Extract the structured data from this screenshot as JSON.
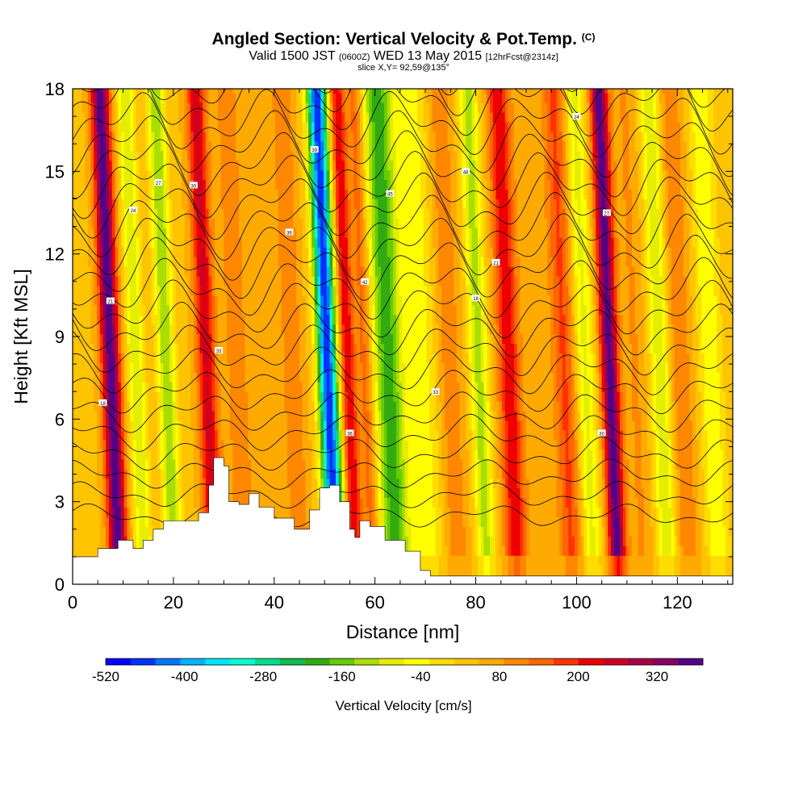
{
  "header": {
    "title_main": "Angled Section: Vertical Velocity & Pot.Temp.",
    "title_tag": "(C)",
    "valid_prefix": "Valid 1500 JST",
    "valid_utc": "(0600Z)",
    "valid_date": "WED 13 May 2015",
    "forecast": "[12hrFcst@2314z]",
    "slice": "slice X,Y= 92,59@135°"
  },
  "chart_data": {
    "type": "heatmap",
    "xlabel": "Distance [nm]",
    "ylabel": "Height [Kft MSL]",
    "xlim": [
      0,
      131
    ],
    "ylim": [
      0,
      18
    ],
    "x_ticks": [
      0,
      20,
      40,
      60,
      80,
      100,
      120
    ],
    "y_ticks": [
      0,
      3,
      6,
      9,
      12,
      15,
      18
    ],
    "colorbar": {
      "label": "Vertical Velocity [cm/s]",
      "tick_labels": [
        "-520",
        "-400",
        "-280",
        "-160",
        "-40",
        "80",
        "200",
        "320"
      ],
      "tick_values": [
        -520,
        -400,
        -280,
        -160,
        -40,
        80,
        200,
        320
      ],
      "min": -520,
      "max": 390,
      "colors": [
        "#0000ff",
        "#0033ff",
        "#0077ff",
        "#00b3ff",
        "#00e5ff",
        "#00ffcc",
        "#00dd88",
        "#11bb55",
        "#33aa11",
        "#66cc00",
        "#aadd00",
        "#e5ee00",
        "#ffff00",
        "#ffdd00",
        "#ffc400",
        "#ffaa00",
        "#ff8800",
        "#ff6600",
        "#ff3300",
        "#ee0000",
        "#cc0022",
        "#aa0044",
        "#880066",
        "#550088"
      ]
    },
    "velocity_bands": [
      {
        "x": 0,
        "w": 20,
        "v": 40
      },
      {
        "x": 8,
        "w": 1.8,
        "v": 390
      },
      {
        "x": 13,
        "w": 1.6,
        "v": -100
      },
      {
        "x": 17,
        "w": 1.4,
        "v": 40
      },
      {
        "x": 19,
        "w": 1.7,
        "v": -140
      },
      {
        "x": 27,
        "w": 1.9,
        "v": 250
      },
      {
        "x": 33,
        "w": 2.5,
        "v": 110
      },
      {
        "x": 38,
        "w": 2.5,
        "v": 60
      },
      {
        "x": 44,
        "w": 2.2,
        "v": 120
      },
      {
        "x": 51,
        "w": 1.9,
        "v": -480
      },
      {
        "x": 55,
        "w": 1.5,
        "v": 240
      },
      {
        "x": 58.5,
        "w": 1.6,
        "v": 150
      },
      {
        "x": 63,
        "w": 3.0,
        "v": -200
      },
      {
        "x": 70,
        "w": 3.5,
        "v": -40
      },
      {
        "x": 75,
        "w": 2.6,
        "v": 120
      },
      {
        "x": 81,
        "w": 1.8,
        "v": -120
      },
      {
        "x": 87,
        "w": 2.2,
        "v": 230
      },
      {
        "x": 92,
        "w": 2.5,
        "v": 60
      },
      {
        "x": 98,
        "w": 2.4,
        "v": 170
      },
      {
        "x": 102,
        "w": 2.0,
        "v": -80
      },
      {
        "x": 107,
        "w": 1.7,
        "v": 380
      },
      {
        "x": 112,
        "w": 2.5,
        "v": 90
      },
      {
        "x": 117,
        "w": 2.0,
        "v": -100
      },
      {
        "x": 121,
        "w": 2.4,
        "v": 120
      },
      {
        "x": 127,
        "w": 2.3,
        "v": -60
      },
      {
        "x": 130,
        "w": 2.5,
        "v": 40
      }
    ],
    "terrain_kft": [
      [
        0,
        1.0
      ],
      [
        5,
        1.3
      ],
      [
        9,
        1.6
      ],
      [
        12,
        1.3
      ],
      [
        14,
        1.6
      ],
      [
        16,
        2.0
      ],
      [
        18,
        2.3
      ],
      [
        25,
        2.6
      ],
      [
        27,
        3.6
      ],
      [
        28,
        4.6
      ],
      [
        30,
        4.3
      ],
      [
        31,
        3.0
      ],
      [
        33,
        2.9
      ],
      [
        35,
        3.3
      ],
      [
        37,
        2.8
      ],
      [
        40,
        2.4
      ],
      [
        44,
        2.0
      ],
      [
        47,
        2.7
      ],
      [
        49,
        3.5
      ],
      [
        51,
        3.6
      ],
      [
        53,
        3.0
      ],
      [
        55,
        2.0
      ],
      [
        56,
        1.7
      ],
      [
        57,
        2.3
      ],
      [
        59,
        2.1
      ],
      [
        62,
        1.6
      ],
      [
        66,
        1.2
      ],
      [
        69,
        0.5
      ],
      [
        71,
        0.3
      ],
      [
        131,
        0.3
      ]
    ],
    "theta_contour_labels": [
      "18",
      "21",
      "24",
      "27",
      "30",
      "33",
      "36",
      "39",
      "42",
      "45",
      "48"
    ]
  }
}
